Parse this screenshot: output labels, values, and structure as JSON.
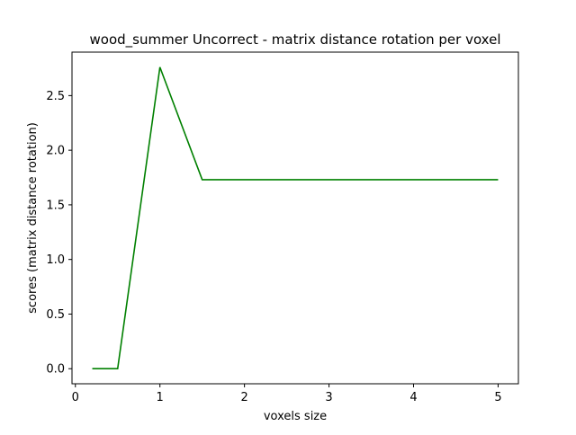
{
  "chart_data": {
    "type": "line",
    "title": "wood_summer Uncorrect - matrix distance rotation per voxel",
    "xlabel": "voxels size",
    "ylabel": "scores (matrix distance rotation)",
    "xlim": [
      -0.04,
      5.24
    ],
    "ylim": [
      -0.138,
      2.898
    ],
    "xticks": [
      0,
      1,
      2,
      3,
      4,
      5
    ],
    "xtick_labels": [
      "0",
      "1",
      "2",
      "3",
      "4",
      "5"
    ],
    "yticks": [
      0.0,
      0.5,
      1.0,
      1.5,
      2.0,
      2.5
    ],
    "ytick_labels": [
      "0.0",
      "0.5",
      "1.0",
      "1.5",
      "2.0",
      "2.5"
    ],
    "grid": false,
    "legend": "none",
    "series": [
      {
        "color": "#008000",
        "x": [
          0.2,
          0.5,
          1.0,
          1.5,
          2.0,
          2.5,
          3.0,
          3.5,
          4.0,
          4.5,
          5.0
        ],
        "y": [
          0.0,
          0.0,
          2.76,
          1.73,
          1.73,
          1.73,
          1.73,
          1.73,
          1.73,
          1.73,
          1.73
        ]
      }
    ]
  }
}
